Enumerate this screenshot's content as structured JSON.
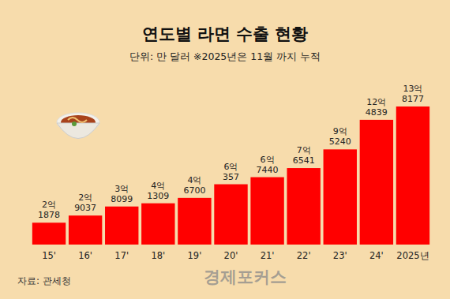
{
  "chart_data": {
    "type": "bar",
    "title": "연도별 라면 수출 현황",
    "subtitle": "단위: 만 달러 ※2025년은 11월 까지 누적",
    "annotations": [
      "자료: 관세청",
      "경제포커스"
    ],
    "categories": [
      "15'",
      "16'",
      "17'",
      "18'",
      "19'",
      "20'",
      "21'",
      "22'",
      "23'",
      "24'",
      "2025년"
    ],
    "values": [
      21878,
      29037,
      38099,
      41309,
      46700,
      60357,
      67440,
      76541,
      95240,
      124839,
      138177
    ],
    "value_labels": [
      "2억 1878",
      "2억 9037",
      "3억 8099",
      "4억 1309",
      "4억 6700",
      "6억 357",
      "6억 7440",
      "7억 6541",
      "9억 5240",
      "12억 4839",
      "13억 8177"
    ],
    "color": "#ff0000",
    "ylim": [
      0,
      150000
    ],
    "data_labels": true,
    "tick_labels": "x",
    "grid": false
  }
}
